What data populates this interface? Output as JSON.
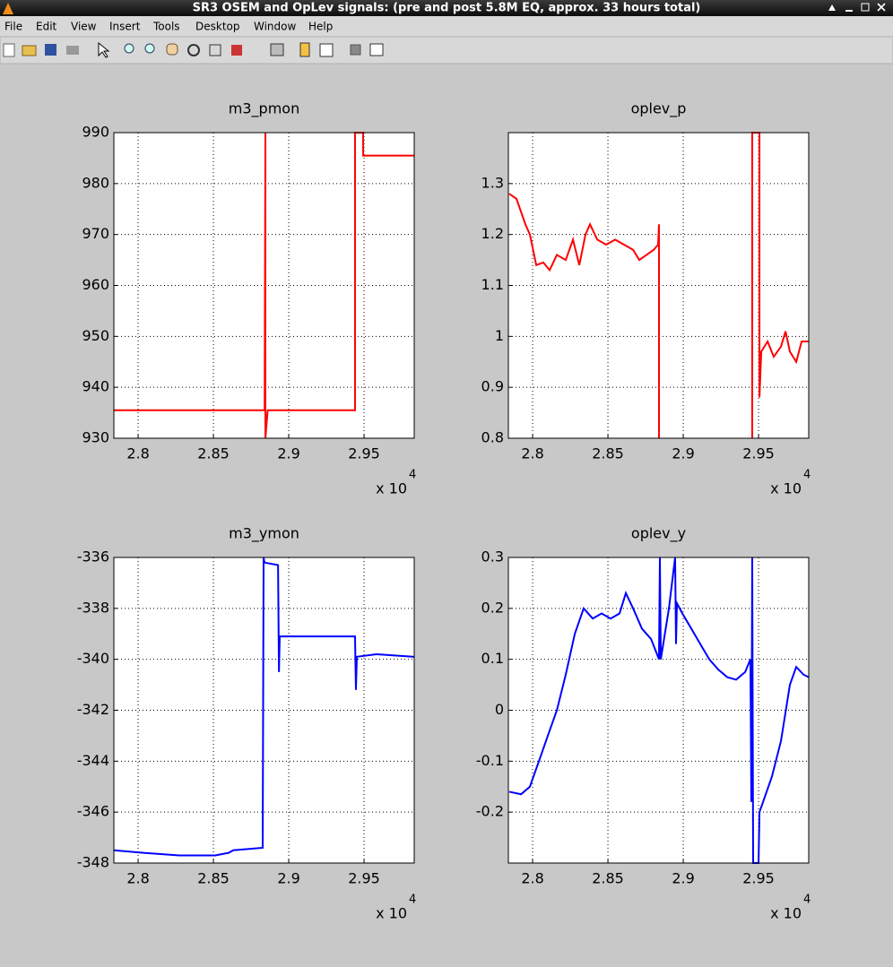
{
  "window": {
    "title": "SR3 OSEM and OpLev signals:  (pre and post 5.8M EQ, approx. 33 hours total)"
  },
  "menu": [
    "File",
    "Edit",
    "View",
    "Insert",
    "Tools",
    "Desktop",
    "Window",
    "Help"
  ],
  "chart_data": [
    {
      "type": "line",
      "title": "m3_pmon",
      "color": "#ff0000",
      "x": [
        2.7839,
        2.884,
        2.8845,
        2.8845,
        2.886,
        2.944,
        2.944,
        2.9494,
        2.9494,
        2.9833
      ],
      "values": [
        935.5,
        935.5,
        990,
        930,
        935.5,
        935.5,
        990,
        990,
        985.5,
        985.5
      ],
      "xlim": [
        2.7839,
        2.9833
      ],
      "ylim": [
        930,
        990
      ],
      "xticks": [
        2.8,
        2.85,
        2.9,
        2.95
      ],
      "yticks": [
        930,
        940,
        950,
        960,
        970,
        980,
        990
      ],
      "x_scale_label": "x 10",
      "x_scale_exponent": "4",
      "grid": true
    },
    {
      "type": "line",
      "title": "oplev_p",
      "color": "#ff0000",
      "x": [
        2.7845,
        2.7893,
        2.7952,
        2.7982,
        2.8024,
        2.8071,
        2.8113,
        2.8161,
        2.822,
        2.8268,
        2.831,
        2.8351,
        2.8381,
        2.8429,
        2.8488,
        2.8548,
        2.8607,
        2.8667,
        2.8708,
        2.8756,
        2.8804,
        2.8833,
        2.8839,
        2.8839,
        2.91,
        2.9458,
        2.9458,
        2.9506,
        2.9506,
        2.9518,
        2.956,
        2.9601,
        2.9649,
        2.9679,
        2.9708,
        2.975,
        2.9786,
        2.9833
      ],
      "values": [
        1.28,
        1.27,
        1.22,
        1.2,
        1.14,
        1.145,
        1.13,
        1.16,
        1.15,
        1.19,
        1.14,
        1.2,
        1.22,
        1.19,
        1.18,
        1.19,
        1.18,
        1.17,
        1.15,
        1.16,
        1.17,
        1.18,
        1.22,
        0.8,
        null,
        0.8,
        1.4,
        1.4,
        0.88,
        0.97,
        0.99,
        0.96,
        0.98,
        1.01,
        0.97,
        0.95,
        0.99,
        0.99
      ],
      "xlim": [
        2.7839,
        2.9833
      ],
      "ylim": [
        0.8,
        1.4
      ],
      "xticks": [
        2.8,
        2.85,
        2.9,
        2.95
      ],
      "yticks": [
        0.8,
        0.9,
        1,
        1.1,
        1.2,
        1.3
      ],
      "x_scale_label": "x 10",
      "x_scale_exponent": "4",
      "grid": true
    },
    {
      "type": "line",
      "title": "m3_ymon",
      "color": "#0000ff",
      "x": [
        2.7839,
        2.8036,
        2.8274,
        2.8512,
        2.8601,
        2.8631,
        2.8827,
        2.8833,
        2.8839,
        2.8929,
        2.8935,
        2.894,
        2.9167,
        2.944,
        2.9446,
        2.9452,
        2.9583,
        2.9833
      ],
      "values": [
        -347.5,
        -347.6,
        -347.7,
        -347.7,
        -347.6,
        -347.5,
        -347.4,
        -336,
        -336.2,
        -336.3,
        -340.5,
        -339.1,
        -339.1,
        -339.1,
        -341.2,
        -339.9,
        -339.8,
        -339.9
      ],
      "xlim": [
        2.7839,
        2.9833
      ],
      "ylim": [
        -348,
        -336
      ],
      "xticks": [
        2.8,
        2.85,
        2.9,
        2.95
      ],
      "yticks": [
        -348,
        -346,
        -344,
        -342,
        -340,
        -338,
        -336
      ],
      "x_scale_label": "x 10",
      "x_scale_exponent": "4",
      "grid": true
    },
    {
      "type": "line",
      "title": "oplev_y",
      "color": "#0000ff",
      "x": [
        2.7845,
        2.7923,
        2.7982,
        2.8042,
        2.8101,
        2.8161,
        2.822,
        2.828,
        2.8339,
        2.8399,
        2.8458,
        2.8518,
        2.8577,
        2.8619,
        2.8667,
        2.8726,
        2.8786,
        2.8839,
        2.8845,
        2.8851,
        2.8905,
        2.8946,
        2.8952,
        2.8958,
        2.8994,
        2.9054,
        2.9113,
        2.9173,
        2.9232,
        2.9292,
        2.9351,
        2.9411,
        2.9446,
        2.9452,
        2.9458,
        2.9464,
        2.95,
        2.9506,
        2.953,
        2.9589,
        2.9649,
        2.9708,
        2.975,
        2.9798,
        2.9833
      ],
      "values": [
        -0.16,
        -0.165,
        -0.15,
        -0.1,
        -0.05,
        0,
        0.07,
        0.15,
        0.2,
        0.18,
        0.19,
        0.18,
        0.19,
        0.23,
        0.2,
        0.16,
        0.14,
        0.1,
        0.3,
        0.1,
        0.2,
        0.3,
        0.13,
        0.21,
        0.19,
        0.16,
        0.13,
        0.1,
        0.08,
        0.065,
        0.06,
        0.075,
        0.1,
        -0.18,
        0.3,
        -0.3,
        -0.3,
        -0.2,
        -0.18,
        -0.13,
        -0.06,
        0.05,
        0.085,
        0.07,
        0.065
      ],
      "xlim": [
        2.7839,
        2.9833
      ],
      "ylim": [
        -0.3,
        0.3
      ],
      "xticks": [
        2.8,
        2.85,
        2.9,
        2.95
      ],
      "yticks": [
        -0.2,
        -0.1,
        0,
        0.1,
        0.2,
        0.3
      ],
      "x_scale_label": "x 10",
      "x_scale_exponent": "4",
      "grid": true
    }
  ]
}
